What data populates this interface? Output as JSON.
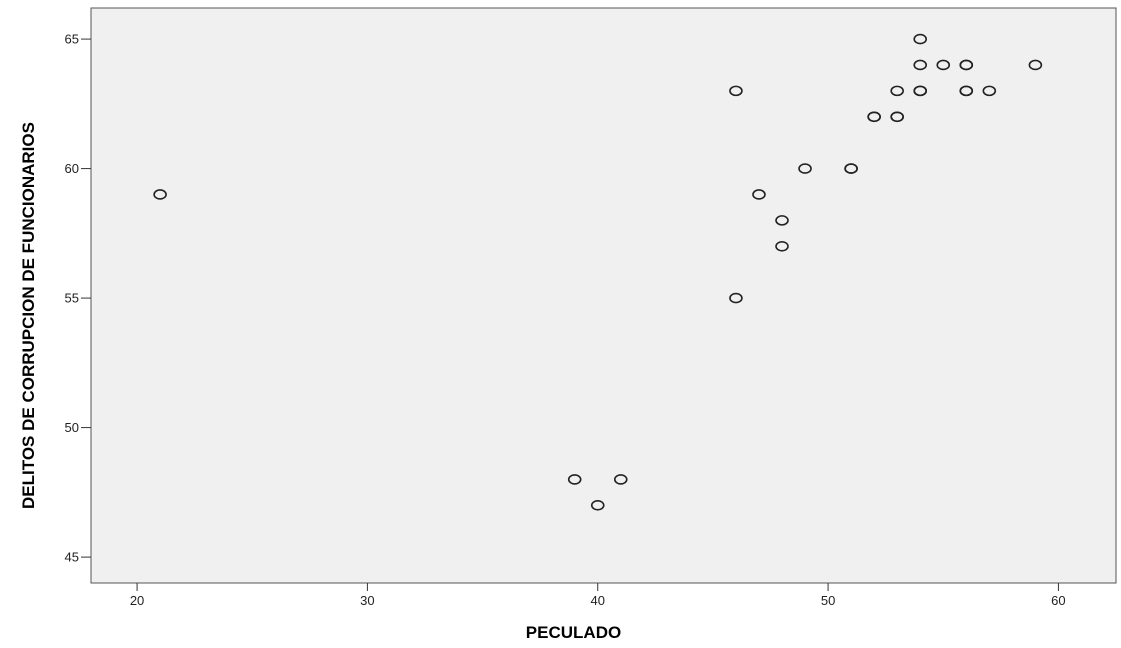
{
  "chart_data": {
    "type": "scatter",
    "title": "",
    "xlabel": "PECULADO",
    "ylabel": "DELITOS DE CORRUPCION DE FUNCIONARIOS",
    "xlim": [
      18,
      62.5
    ],
    "ylim": [
      44,
      66.2
    ],
    "x_ticks": [
      20,
      30,
      40,
      50,
      60
    ],
    "y_ticks": [
      45,
      50,
      55,
      60,
      65
    ],
    "x_tick_labels": [
      "20",
      "30",
      "40",
      "50",
      "60"
    ],
    "y_tick_labels": [
      "45",
      "50",
      "55",
      "60",
      "65"
    ],
    "grid": false,
    "points": [
      {
        "x": 21,
        "y": 59
      },
      {
        "x": 39,
        "y": 48
      },
      {
        "x": 40,
        "y": 47
      },
      {
        "x": 41,
        "y": 48
      },
      {
        "x": 46,
        "y": 63
      },
      {
        "x": 46,
        "y": 55
      },
      {
        "x": 47,
        "y": 59
      },
      {
        "x": 48,
        "y": 58
      },
      {
        "x": 48,
        "y": 57
      },
      {
        "x": 49,
        "y": 60
      },
      {
        "x": 51,
        "y": 60
      },
      {
        "x": 51,
        "y": 60
      },
      {
        "x": 52,
        "y": 62
      },
      {
        "x": 52,
        "y": 62
      },
      {
        "x": 53,
        "y": 62
      },
      {
        "x": 53,
        "y": 62
      },
      {
        "x": 53,
        "y": 63
      },
      {
        "x": 54,
        "y": 65
      },
      {
        "x": 54,
        "y": 64
      },
      {
        "x": 54,
        "y": 63
      },
      {
        "x": 54,
        "y": 63
      },
      {
        "x": 55,
        "y": 64
      },
      {
        "x": 56,
        "y": 64
      },
      {
        "x": 56,
        "y": 64
      },
      {
        "x": 56,
        "y": 63
      },
      {
        "x": 56,
        "y": 63
      },
      {
        "x": 57,
        "y": 63
      },
      {
        "x": 59,
        "y": 64
      }
    ]
  }
}
